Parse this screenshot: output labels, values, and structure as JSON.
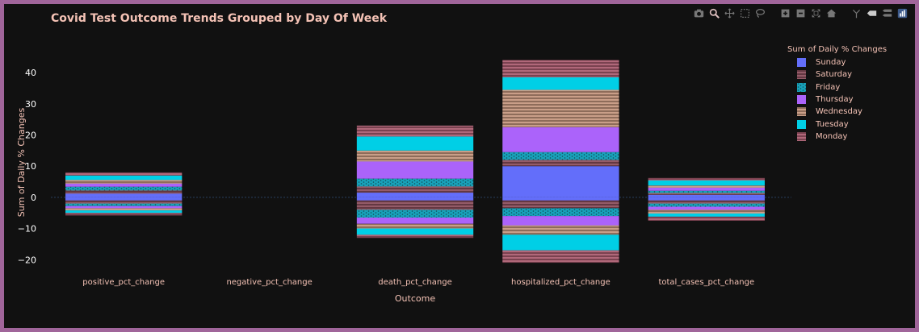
{
  "chart_data": {
    "type": "bar",
    "barmode": "relative",
    "title": "Covid Test Outcome Trends Grouped by Day Of Week",
    "xlabel": "Outcome",
    "ylabel": "Sum of Daily % Changes",
    "categories": [
      "positive_pct_change",
      "negative_pct_change",
      "death_pct_change",
      "hospitalized_pct_change",
      "total_cases_pct_change"
    ],
    "yticks": [
      -20,
      -10,
      0,
      10,
      20,
      30,
      40
    ],
    "ylim": [
      -22,
      47
    ],
    "legend": {
      "title": "Sum of Daily % Changes",
      "position": "top-right"
    },
    "series": [
      {
        "name": "Sunday",
        "color": "#636efa",
        "pattern": "solid",
        "positive": [
          1.2,
          0,
          1.5,
          10.0,
          0.8
        ],
        "negative": [
          -1.0,
          0,
          -1.0,
          -1.0,
          -1.0
        ]
      },
      {
        "name": "Saturday",
        "color": "#b05b6e",
        "pattern": "hatch",
        "positive": [
          1.0,
          0,
          2.0,
          2.0,
          0.6
        ],
        "negative": [
          -1.0,
          0,
          -3.0,
          -2.5,
          -1.0
        ]
      },
      {
        "name": "Friday",
        "color": "#19d3f3",
        "pattern": "dots",
        "positive": [
          1.2,
          0,
          2.5,
          2.5,
          0.7
        ],
        "negative": [
          -0.8,
          0,
          -2.5,
          -2.5,
          -1.0
        ]
      },
      {
        "name": "Thursday",
        "color": "#ab63fa",
        "pattern": "solid",
        "positive": [
          1.0,
          0,
          5.5,
          8.0,
          1.0
        ],
        "negative": [
          -0.7,
          0,
          -2.0,
          -3.0,
          -1.0
        ]
      },
      {
        "name": "Wednesday",
        "color": "#ffbe9d",
        "pattern": "hatch",
        "positive": [
          1.2,
          0,
          3.5,
          12.0,
          0.7
        ],
        "negative": [
          -0.7,
          0,
          -1.5,
          -3.0,
          -1.2
        ]
      },
      {
        "name": "Tuesday",
        "color": "#00cfe6",
        "pattern": "solid",
        "positive": [
          1.4,
          0,
          4.5,
          4.0,
          1.6
        ],
        "negative": [
          -0.8,
          0,
          -2.0,
          -5.0,
          -1.0
        ]
      },
      {
        "name": "Monday",
        "color": "#d96d88",
        "pattern": "hatch",
        "positive": [
          1.0,
          0,
          3.5,
          5.5,
          0.8
        ],
        "negative": [
          -0.8,
          0,
          -1.0,
          -4.0,
          -1.3
        ]
      }
    ],
    "colors": {
      "background": "#111111",
      "border": "#a0659a",
      "text": "#f4c2b5",
      "tick": "#ffffff",
      "zeroline": "#2a3f5f"
    }
  },
  "modebar": {
    "icons": [
      "camera-icon",
      "zoom-icon",
      "pan-icon",
      "box-select-icon",
      "lasso-icon",
      "zoom-in-icon",
      "zoom-out-icon",
      "autoscale-icon",
      "home-icon",
      "spike-lines-icon",
      "hover-closest-icon",
      "hover-compare-icon",
      "plotly-logo-icon"
    ]
  }
}
